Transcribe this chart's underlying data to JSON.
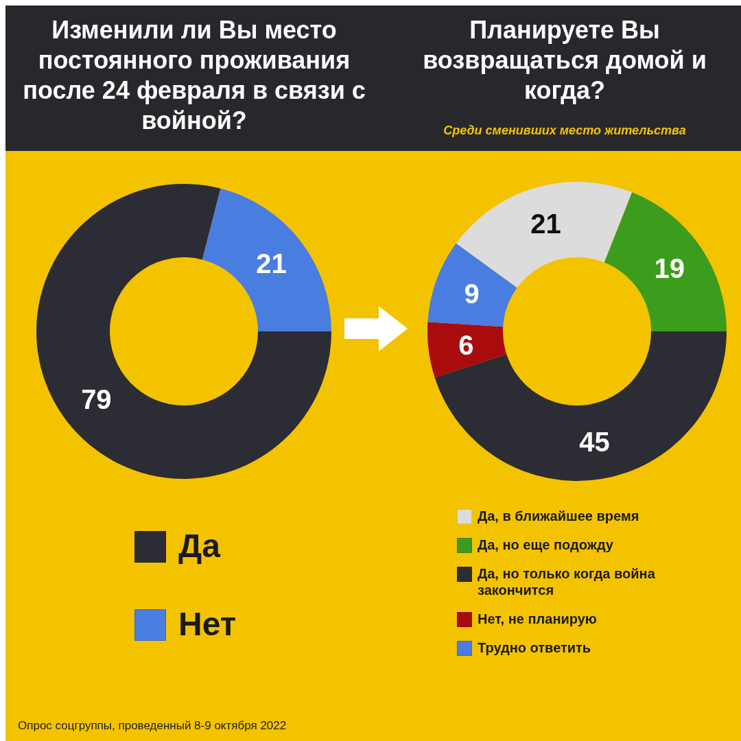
{
  "chart_data": [
    {
      "type": "donut",
      "title": "Изменили ли Вы место постоянного проживания после 24 февраля в связи с войной?",
      "categories": [
        "Да",
        "Нет"
      ],
      "values": [
        79,
        21
      ],
      "colors": [
        "#2c2c34",
        "#4a7de0"
      ],
      "data_labels": true,
      "legend": "bottom",
      "annotations": [
        "Опрос соцгруппы, проведенный 8-9 октября 2022"
      ]
    },
    {
      "type": "donut",
      "title": "Планируете Вы возвращаться домой и когда?",
      "subtitle": "Среди сменивших место жительства",
      "categories": [
        "Да, в ближайшее время",
        "Да, но еще подожду",
        "Да, но только когда война закончится",
        "Нет, не планирую",
        "Трудно ответить"
      ],
      "values": [
        21,
        19,
        45,
        6,
        9
      ],
      "colors": [
        "#dcdcdc",
        "#3c9c1c",
        "#2c2c34",
        "#a80c0c",
        "#4a7de0"
      ],
      "data_labels": true,
      "legend": "bottom"
    }
  ]
}
